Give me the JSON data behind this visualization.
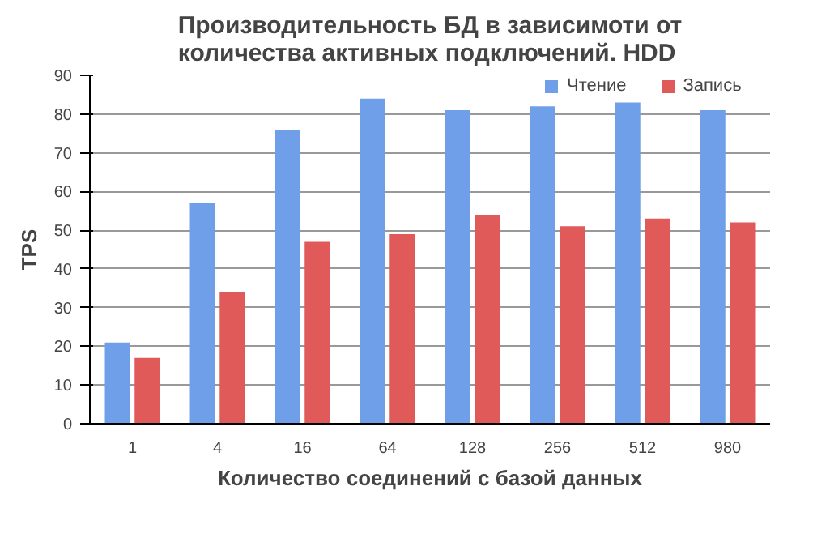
{
  "chart_data": {
    "type": "bar",
    "title": "Производительность БД в зависимоти от количества активных подключений. HDD",
    "xlabel": "Количество соединений с базой данных",
    "ylabel": "TPS",
    "categories": [
      "1",
      "4",
      "16",
      "64",
      "128",
      "256",
      "512",
      "980"
    ],
    "series": [
      {
        "name": "Чтение",
        "color": "#6f9fe8",
        "values": [
          21,
          57,
          76,
          84,
          81,
          82,
          83,
          81
        ]
      },
      {
        "name": "Запись",
        "color": "#e05a5a",
        "values": [
          17,
          34,
          47,
          49,
          54,
          51,
          53,
          52
        ]
      }
    ],
    "ylim": [
      0,
      90
    ],
    "yticks": [
      0,
      10,
      20,
      30,
      40,
      50,
      60,
      70,
      80,
      90
    ],
    "grid": "y",
    "legend": "top right"
  }
}
